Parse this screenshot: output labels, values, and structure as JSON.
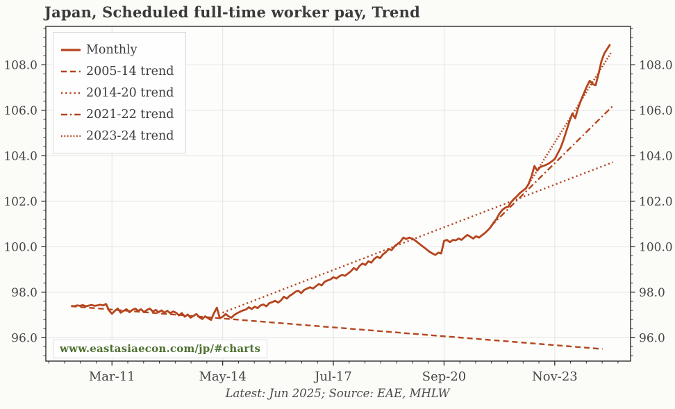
{
  "title": "Japan, Scheduled full-time worker pay, Trend",
  "watermark": "www.eastasiaecon.com/jp/#charts",
  "source_note": "Latest: Jun 2025; Source: EAE, MHLW",
  "colors": {
    "series": "#b5451d",
    "grid": "#e3e3e3",
    "spine": "#2d2d2d",
    "tick_label": "#454545",
    "title_text": "#3a3a3a",
    "watermark_text": "#4d7030",
    "background": "#fbfbf8"
  },
  "chart_data": {
    "type": "line",
    "title": "Japan, Scheduled full-time worker pay, Trend",
    "xlabel": "",
    "ylabel": "",
    "grid": true,
    "legend_position": "upper-left",
    "xlim": [
      2009.275,
      2026.0
    ],
    "ylim": [
      94.97,
      109.69
    ],
    "y_ticks": [
      {
        "value": 96,
        "label": "96.0"
      },
      {
        "value": 98,
        "label": "98.0"
      },
      {
        "value": 100,
        "label": "100.0"
      },
      {
        "value": 102,
        "label": "102.0"
      },
      {
        "value": 104,
        "label": "104.0"
      },
      {
        "value": 106,
        "label": "106.0"
      },
      {
        "value": 108,
        "label": "108.0"
      }
    ],
    "x_ticks": [
      {
        "t": 2011.167,
        "label": "Mar-11"
      },
      {
        "t": 2014.333,
        "label": "May-14"
      },
      {
        "t": 2017.5,
        "label": "Jul-17"
      },
      {
        "t": 2020.667,
        "label": "Sep-20"
      },
      {
        "t": 2023.833,
        "label": "Nov-23"
      }
    ],
    "series": [
      {
        "name": "Monthly",
        "line_style": "solid",
        "width": 2.8,
        "start": "2010-01",
        "interval": "month",
        "latest": "2025-06",
        "values": [
          97.4,
          97.38,
          97.42,
          97.4,
          97.43,
          97.38,
          97.41,
          97.44,
          97.4,
          97.42,
          97.45,
          97.42,
          97.48,
          97.2,
          97.05,
          97.18,
          97.28,
          97.1,
          97.18,
          97.25,
          97.12,
          97.22,
          97.28,
          97.18,
          97.25,
          97.12,
          97.22,
          97.28,
          97.15,
          97.22,
          97.12,
          97.2,
          97.1,
          97.18,
          97.08,
          97.15,
          97.1,
          96.98,
          97.08,
          96.92,
          97.02,
          96.88,
          96.96,
          97.04,
          96.9,
          96.82,
          96.94,
          96.85,
          96.78,
          97.08,
          97.32,
          96.86,
          96.92,
          97.04,
          96.94,
          96.88,
          97.0,
          97.08,
          97.14,
          97.2,
          97.24,
          97.34,
          97.26,
          97.36,
          97.3,
          97.42,
          97.46,
          97.38,
          97.52,
          97.56,
          97.62,
          97.54,
          97.64,
          97.8,
          97.72,
          97.84,
          97.92,
          98.02,
          98.06,
          97.96,
          98.1,
          98.16,
          98.22,
          98.16,
          98.26,
          98.36,
          98.3,
          98.46,
          98.52,
          98.56,
          98.66,
          98.6,
          98.7,
          98.76,
          98.72,
          98.82,
          98.92,
          99.06,
          98.98,
          99.16,
          99.26,
          99.2,
          99.36,
          99.3,
          99.46,
          99.56,
          99.5,
          99.66,
          99.76,
          99.9,
          99.85,
          100.02,
          100.12,
          100.22,
          100.4,
          100.34,
          100.4,
          100.36,
          100.28,
          100.18,
          100.08,
          99.98,
          99.88,
          99.78,
          99.7,
          99.64,
          99.74,
          99.7,
          100.26,
          100.3,
          100.2,
          100.3,
          100.28,
          100.36,
          100.3,
          100.42,
          100.52,
          100.44,
          100.36,
          100.46,
          100.4,
          100.5,
          100.6,
          100.72,
          100.86,
          101.06,
          101.22,
          101.46,
          101.62,
          101.72,
          101.76,
          101.96,
          102.1,
          102.22,
          102.36,
          102.46,
          102.56,
          102.76,
          103.1,
          103.55,
          103.35,
          103.5,
          103.55,
          103.6,
          103.66,
          103.76,
          103.86,
          104.1,
          104.35,
          104.7,
          105.1,
          105.5,
          105.85,
          105.65,
          106.1,
          106.45,
          106.75,
          107.05,
          107.3,
          107.15,
          107.1,
          107.6,
          108.15,
          108.5,
          108.7,
          108.9
        ]
      },
      {
        "name": "2005-14 trend",
        "line_style": "dashed",
        "width": 2.4,
        "points": [
          [
            2010.0,
            97.38
          ],
          [
            2025.2,
            95.5
          ]
        ]
      },
      {
        "name": "2014-20 trend",
        "line_style": "dotted",
        "width": 2.4,
        "points": [
          [
            2014.33,
            97.1
          ],
          [
            2025.5,
            103.72
          ]
        ]
      },
      {
        "name": "2021-22 trend",
        "line_style": "dashdot",
        "width": 2.4,
        "points": [
          [
            2022.0,
            100.9
          ],
          [
            2025.5,
            106.2
          ]
        ]
      },
      {
        "name": "2023-24 trend",
        "line_style": "dense-dotted",
        "width": 2.6,
        "points": [
          [
            2023.0,
            102.55
          ],
          [
            2025.45,
            108.55
          ]
        ]
      }
    ]
  },
  "legend": {
    "items": [
      {
        "label": "Monthly",
        "line_style": "solid"
      },
      {
        "label": "2005-14 trend",
        "line_style": "dashed"
      },
      {
        "label": "2014-20 trend",
        "line_style": "dotted"
      },
      {
        "label": "2021-22 trend",
        "line_style": "dashdot"
      },
      {
        "label": "2023-24 trend",
        "line_style": "dense-dotted"
      }
    ]
  }
}
